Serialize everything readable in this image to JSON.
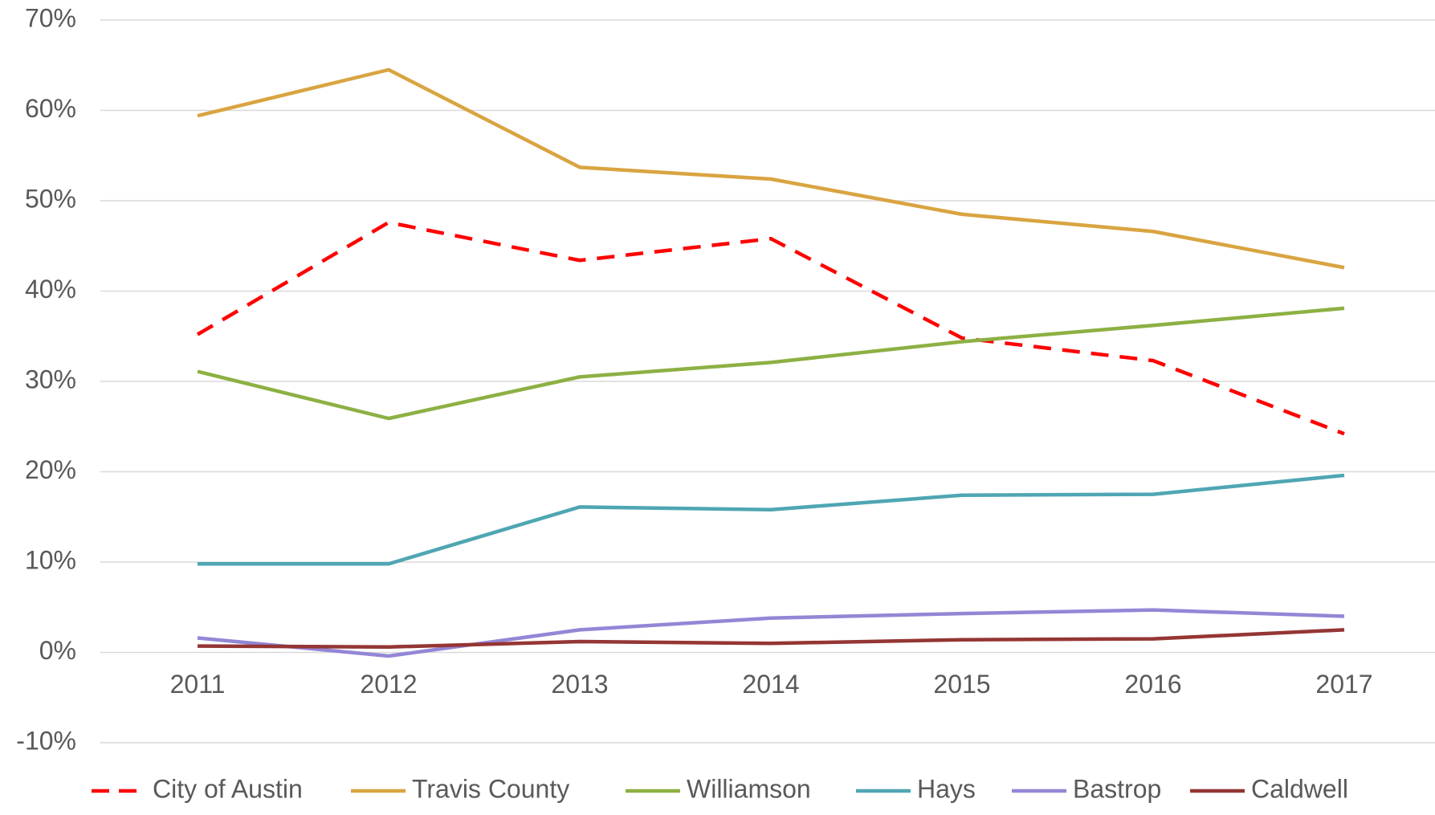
{
  "chart_data": {
    "type": "line",
    "categories": [
      "2011",
      "2012",
      "2013",
      "2014",
      "2015",
      "2016",
      "2017"
    ],
    "series": [
      {
        "name": "City of Austin",
        "color": "#ff0000",
        "dashed": true,
        "values": [
          35.2,
          47.6,
          43.4,
          45.8,
          34.8,
          32.3,
          24.2
        ]
      },
      {
        "name": "Travis County",
        "color": "#d9a441",
        "values": [
          59.4,
          64.5,
          53.7,
          52.4,
          48.5,
          46.6,
          42.6
        ]
      },
      {
        "name": "Williamson",
        "color": "#8db043",
        "values": [
          31.1,
          25.9,
          30.5,
          32.1,
          34.4,
          36.2,
          38.1
        ]
      },
      {
        "name": "Hays",
        "color": "#4fa6b3",
        "values": [
          9.8,
          9.8,
          16.1,
          15.8,
          17.4,
          17.5,
          19.6
        ]
      },
      {
        "name": "Bastrop",
        "color": "#9486d6",
        "values": [
          1.6,
          -0.4,
          2.5,
          3.8,
          4.3,
          4.7,
          4.0
        ]
      },
      {
        "name": "Caldwell",
        "color": "#943634",
        "values": [
          0.7,
          0.6,
          1.2,
          1.0,
          1.4,
          1.5,
          2.5
        ]
      }
    ],
    "ylim": [
      -10,
      70
    ],
    "yticks": [
      {
        "value": -10,
        "label": "-10%"
      },
      {
        "value": 0,
        "label": "0%"
      },
      {
        "value": 10,
        "label": "10%"
      },
      {
        "value": 20,
        "label": "20%"
      },
      {
        "value": 30,
        "label": "30%"
      },
      {
        "value": 40,
        "label": "40%"
      },
      {
        "value": 50,
        "label": "50%"
      },
      {
        "value": 60,
        "label": "60%"
      },
      {
        "value": 70,
        "label": "70%"
      }
    ],
    "grid": true,
    "legend": "bottom"
  }
}
